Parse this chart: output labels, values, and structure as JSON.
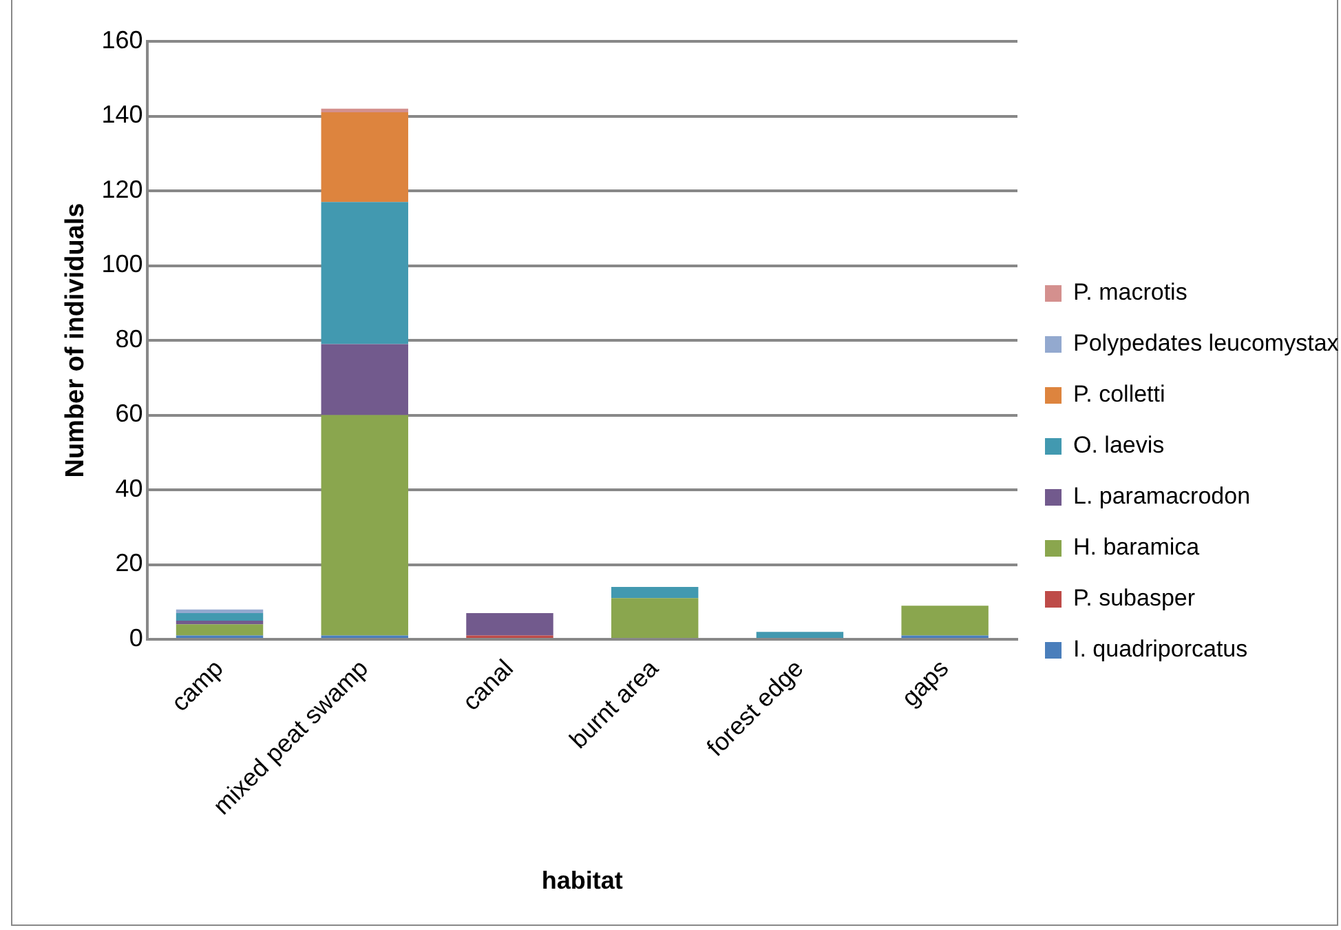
{
  "chart_data": {
    "type": "bar",
    "stacked": true,
    "xlabel": "habitat",
    "ylabel": "Number of individuals",
    "categories": [
      "camp",
      "mixed peat swamp",
      "canal",
      "burnt area",
      "forest edge",
      "gaps"
    ],
    "series": [
      {
        "name": "I. quadriporcatus",
        "color": "#4a7ebb",
        "values": [
          1,
          1,
          0,
          0,
          0,
          1
        ]
      },
      {
        "name": "P. subasper",
        "color": "#be4b48",
        "values": [
          0,
          0,
          1,
          0,
          0,
          0
        ]
      },
      {
        "name": "H. baramica",
        "color": "#8aa64e",
        "values": [
          3,
          59,
          0,
          11,
          0,
          8
        ]
      },
      {
        "name": "L. paramacrodon",
        "color": "#725a8d",
        "values": [
          1,
          19,
          6,
          0,
          0,
          0
        ]
      },
      {
        "name": "O. laevis",
        "color": "#4299b0",
        "values": [
          2,
          38,
          0,
          3,
          2,
          0
        ]
      },
      {
        "name": "P. colletti",
        "color": "#dd843e",
        "values": [
          0,
          24,
          0,
          0,
          0,
          0
        ]
      },
      {
        "name": "Polypedates leucomystax",
        "color": "#93a9cf",
        "values": [
          1,
          0,
          0,
          0,
          0,
          0
        ]
      },
      {
        "name": "P. macrotis",
        "color": "#d4908e",
        "values": [
          0,
          1,
          0,
          0,
          0,
          0
        ]
      }
    ],
    "ylim": [
      0,
      160
    ],
    "yticks": [
      0,
      20,
      40,
      60,
      80,
      100,
      120,
      140,
      160
    ],
    "grid": "y",
    "legend": "right"
  }
}
